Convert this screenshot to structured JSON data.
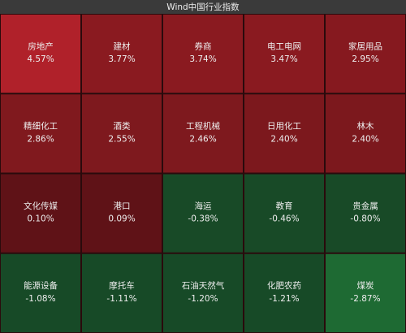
{
  "chart_data": {
    "type": "heatmap",
    "title": "Wind中国行业指数",
    "categories": [
      "房地产",
      "建材",
      "券商",
      "电工电网",
      "家居用品",
      "精细化工",
      "酒类",
      "工程机械",
      "日用化工",
      "林木",
      "文化传媒",
      "港口",
      "海运",
      "教育",
      "贵金属",
      "能源设备",
      "摩托车",
      "石油天然气",
      "化肥农药",
      "煤炭"
    ],
    "values": [
      4.57,
      3.77,
      3.74,
      3.47,
      2.95,
      2.86,
      2.55,
      2.46,
      2.4,
      2.4,
      0.1,
      0.09,
      -0.38,
      -0.46,
      -0.8,
      -1.08,
      -1.11,
      -1.2,
      -1.21,
      -2.87
    ],
    "value_labels": [
      "4.57%",
      "3.77%",
      "3.74%",
      "3.47%",
      "2.95%",
      "2.86%",
      "2.55%",
      "2.46%",
      "2.40%",
      "2.40%",
      "0.10%",
      "0.09%",
      "-0.38%",
      "-0.46%",
      "-0.80%",
      "-1.08%",
      "-1.11%",
      "-1.20%",
      "-1.21%",
      "-2.87%"
    ],
    "colors": [
      "#b0212a",
      "#8a1a20",
      "#8a1a20",
      "#8a1a20",
      "#86191f",
      "#80191e",
      "#7e191e",
      "#7e191e",
      "#7c181d",
      "#7c181d",
      "#5f1217",
      "#5f1217",
      "#184a27",
      "#184a27",
      "#184a27",
      "#174a27",
      "#174a27",
      "#174a27",
      "#174a27",
      "#1e6a33"
    ]
  }
}
